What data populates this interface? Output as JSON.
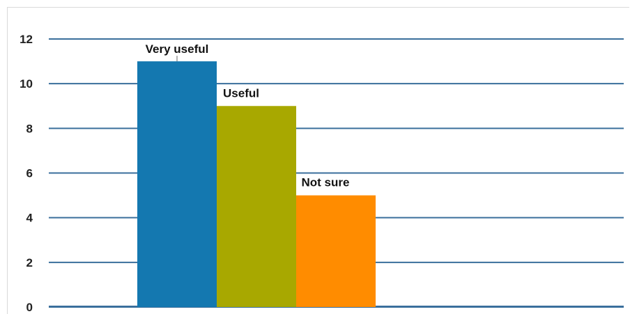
{
  "chart_data": {
    "type": "bar",
    "categories": [
      "Very useful",
      "Useful",
      "Not sure"
    ],
    "values": [
      11,
      9,
      5
    ],
    "colors": [
      "#1478b0",
      "#a8a800",
      "#ff8c00"
    ],
    "title": "",
    "xlabel": "",
    "ylabel": "",
    "ylim": [
      0,
      12
    ],
    "yticks": [
      "0",
      "2",
      "4",
      "6",
      "8",
      "10",
      "12"
    ],
    "grid": true,
    "grid_color": "#3a6f9c",
    "legend": "none"
  }
}
